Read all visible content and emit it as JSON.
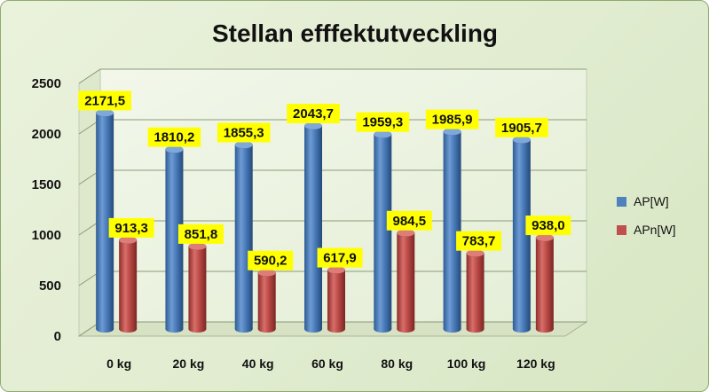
{
  "chart_data": {
    "type": "bar",
    "title": "Stellan efffektutveckling",
    "categories": [
      "0 kg",
      "20 kg",
      "40 kg",
      "60 kg",
      "80 kg",
      "100 kg",
      "120 kg"
    ],
    "series": [
      {
        "name": "AP[W]",
        "color": "#4f81bd",
        "values": [
          2171.5,
          1810.2,
          1855.3,
          2043.7,
          1959.3,
          1985.9,
          1905.7
        ],
        "labels": [
          "2171,5",
          "1810,2",
          "1855,3",
          "2043,7",
          "1959,3",
          "1985,9",
          "1905,7"
        ]
      },
      {
        "name": "APn[W]",
        "color": "#c0504d",
        "values": [
          913.3,
          851.8,
          590.2,
          617.9,
          984.5,
          783.7,
          938.0
        ],
        "labels": [
          "913,3",
          "851,8",
          "590,2",
          "617,9",
          "984,5",
          "783,7",
          "938,0"
        ]
      }
    ],
    "ylim": [
      0,
      2500
    ],
    "yticks": [
      "0",
      "500",
      "1000",
      "1500",
      "2000",
      "2500"
    ],
    "grid": true,
    "legend_position": "right",
    "bar_shape": "cylinder-3d",
    "data_label_background": "#ffff00"
  }
}
